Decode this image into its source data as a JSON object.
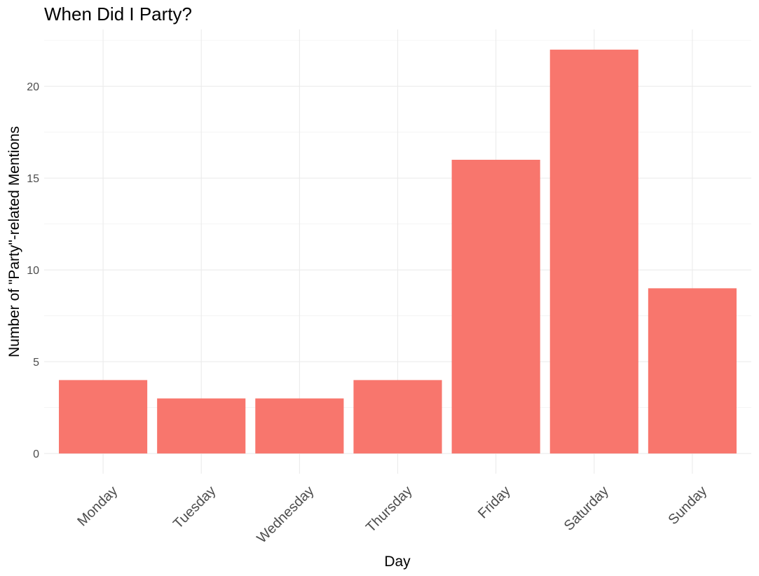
{
  "chart_data": {
    "type": "bar",
    "title": "When Did I Party?",
    "xlabel": "Day",
    "ylabel": "Number of \"Party\"-related Mentions",
    "categories": [
      "Monday",
      "Tuesday",
      "Wednesday",
      "Thursday",
      "Friday",
      "Saturday",
      "Sunday"
    ],
    "values": [
      4,
      3,
      3,
      4,
      16,
      22,
      9
    ],
    "yticks": [
      0,
      5,
      10,
      15,
      20
    ],
    "ytick_labels": [
      "0",
      "5",
      "10",
      "15",
      "20"
    ],
    "ylim": [
      -1.1,
      23.1
    ],
    "grid": true,
    "legend": "none",
    "bar_color": "#f8766d"
  }
}
